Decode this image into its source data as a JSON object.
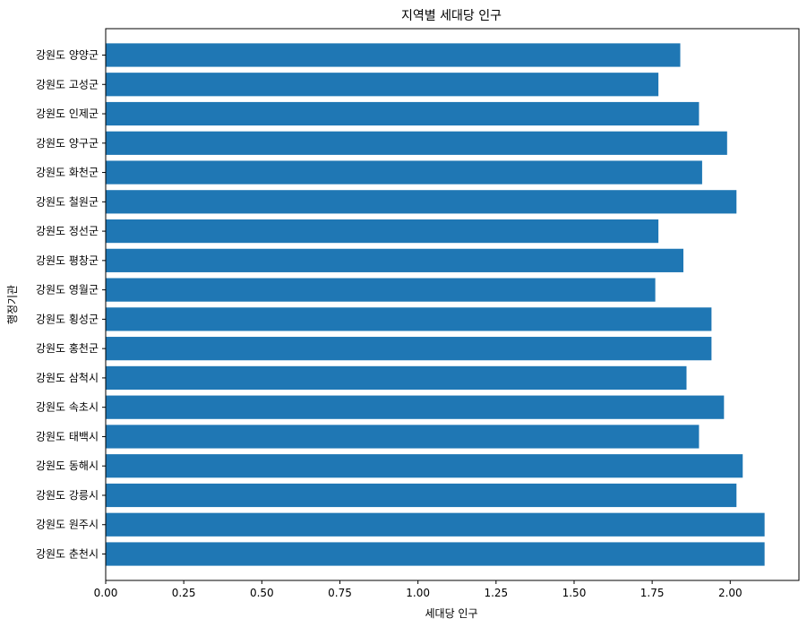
{
  "chart_data": {
    "type": "bar",
    "orientation": "horizontal",
    "title": "지역별 세대당 인구",
    "xlabel": "세대당 인구",
    "ylabel": "행정기관",
    "xlim": [
      0,
      2.22
    ],
    "xticks": [
      "0.00",
      "0.25",
      "0.50",
      "0.75",
      "1.00",
      "1.25",
      "1.50",
      "1.75",
      "2.00"
    ],
    "grid": false,
    "bar_color": "#1f77b4",
    "categories": [
      "강원도 춘천시",
      "강원도 원주시",
      "강원도 강릉시",
      "강원도 동해시",
      "강원도 태백시",
      "강원도 속초시",
      "강원도 삼척시",
      "강원도 홍천군",
      "강원도 횡성군",
      "강원도 영월군",
      "강원도 평창군",
      "강원도 정선군",
      "강원도 철원군",
      "강원도 화천군",
      "강원도 양구군",
      "강원도 인제군",
      "강원도 고성군",
      "강원도 양양군"
    ],
    "values": [
      2.11,
      2.11,
      2.02,
      2.04,
      1.9,
      1.98,
      1.86,
      1.94,
      1.94,
      1.76,
      1.85,
      1.77,
      2.02,
      1.91,
      1.99,
      1.9,
      1.77,
      1.84
    ]
  }
}
